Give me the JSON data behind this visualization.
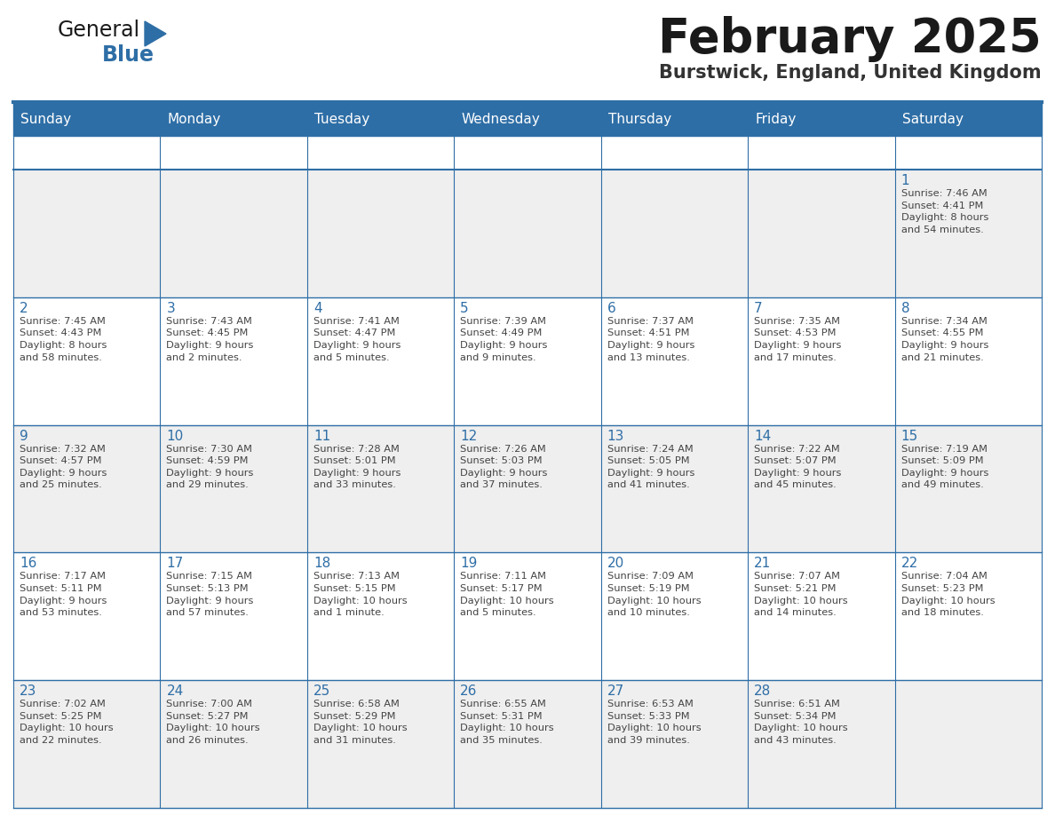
{
  "title": "February 2025",
  "subtitle": "Burstwick, England, United Kingdom",
  "header_bg_color": "#2E6EA6",
  "header_text_color": "#FFFFFF",
  "cell_bg_color_even": "#EFEFEF",
  "cell_bg_color_odd": "#FFFFFF",
  "grid_line_color": "#2E6EA6",
  "day_number_color": "#2E6EA6",
  "text_color": "#444444",
  "days_of_week": [
    "Sunday",
    "Monday",
    "Tuesday",
    "Wednesday",
    "Thursday",
    "Friday",
    "Saturday"
  ],
  "weeks": [
    [
      {
        "day": "",
        "info": ""
      },
      {
        "day": "",
        "info": ""
      },
      {
        "day": "",
        "info": ""
      },
      {
        "day": "",
        "info": ""
      },
      {
        "day": "",
        "info": ""
      },
      {
        "day": "",
        "info": ""
      },
      {
        "day": "1",
        "info": "Sunrise: 7:46 AM\nSunset: 4:41 PM\nDaylight: 8 hours\nand 54 minutes."
      }
    ],
    [
      {
        "day": "2",
        "info": "Sunrise: 7:45 AM\nSunset: 4:43 PM\nDaylight: 8 hours\nand 58 minutes."
      },
      {
        "day": "3",
        "info": "Sunrise: 7:43 AM\nSunset: 4:45 PM\nDaylight: 9 hours\nand 2 minutes."
      },
      {
        "day": "4",
        "info": "Sunrise: 7:41 AM\nSunset: 4:47 PM\nDaylight: 9 hours\nand 5 minutes."
      },
      {
        "day": "5",
        "info": "Sunrise: 7:39 AM\nSunset: 4:49 PM\nDaylight: 9 hours\nand 9 minutes."
      },
      {
        "day": "6",
        "info": "Sunrise: 7:37 AM\nSunset: 4:51 PM\nDaylight: 9 hours\nand 13 minutes."
      },
      {
        "day": "7",
        "info": "Sunrise: 7:35 AM\nSunset: 4:53 PM\nDaylight: 9 hours\nand 17 minutes."
      },
      {
        "day": "8",
        "info": "Sunrise: 7:34 AM\nSunset: 4:55 PM\nDaylight: 9 hours\nand 21 minutes."
      }
    ],
    [
      {
        "day": "9",
        "info": "Sunrise: 7:32 AM\nSunset: 4:57 PM\nDaylight: 9 hours\nand 25 minutes."
      },
      {
        "day": "10",
        "info": "Sunrise: 7:30 AM\nSunset: 4:59 PM\nDaylight: 9 hours\nand 29 minutes."
      },
      {
        "day": "11",
        "info": "Sunrise: 7:28 AM\nSunset: 5:01 PM\nDaylight: 9 hours\nand 33 minutes."
      },
      {
        "day": "12",
        "info": "Sunrise: 7:26 AM\nSunset: 5:03 PM\nDaylight: 9 hours\nand 37 minutes."
      },
      {
        "day": "13",
        "info": "Sunrise: 7:24 AM\nSunset: 5:05 PM\nDaylight: 9 hours\nand 41 minutes."
      },
      {
        "day": "14",
        "info": "Sunrise: 7:22 AM\nSunset: 5:07 PM\nDaylight: 9 hours\nand 45 minutes."
      },
      {
        "day": "15",
        "info": "Sunrise: 7:19 AM\nSunset: 5:09 PM\nDaylight: 9 hours\nand 49 minutes."
      }
    ],
    [
      {
        "day": "16",
        "info": "Sunrise: 7:17 AM\nSunset: 5:11 PM\nDaylight: 9 hours\nand 53 minutes."
      },
      {
        "day": "17",
        "info": "Sunrise: 7:15 AM\nSunset: 5:13 PM\nDaylight: 9 hours\nand 57 minutes."
      },
      {
        "day": "18",
        "info": "Sunrise: 7:13 AM\nSunset: 5:15 PM\nDaylight: 10 hours\nand 1 minute."
      },
      {
        "day": "19",
        "info": "Sunrise: 7:11 AM\nSunset: 5:17 PM\nDaylight: 10 hours\nand 5 minutes."
      },
      {
        "day": "20",
        "info": "Sunrise: 7:09 AM\nSunset: 5:19 PM\nDaylight: 10 hours\nand 10 minutes."
      },
      {
        "day": "21",
        "info": "Sunrise: 7:07 AM\nSunset: 5:21 PM\nDaylight: 10 hours\nand 14 minutes."
      },
      {
        "day": "22",
        "info": "Sunrise: 7:04 AM\nSunset: 5:23 PM\nDaylight: 10 hours\nand 18 minutes."
      }
    ],
    [
      {
        "day": "23",
        "info": "Sunrise: 7:02 AM\nSunset: 5:25 PM\nDaylight: 10 hours\nand 22 minutes."
      },
      {
        "day": "24",
        "info": "Sunrise: 7:00 AM\nSunset: 5:27 PM\nDaylight: 10 hours\nand 26 minutes."
      },
      {
        "day": "25",
        "info": "Sunrise: 6:58 AM\nSunset: 5:29 PM\nDaylight: 10 hours\nand 31 minutes."
      },
      {
        "day": "26",
        "info": "Sunrise: 6:55 AM\nSunset: 5:31 PM\nDaylight: 10 hours\nand 35 minutes."
      },
      {
        "day": "27",
        "info": "Sunrise: 6:53 AM\nSunset: 5:33 PM\nDaylight: 10 hours\nand 39 minutes."
      },
      {
        "day": "28",
        "info": "Sunrise: 6:51 AM\nSunset: 5:34 PM\nDaylight: 10 hours\nand 43 minutes."
      },
      {
        "day": "",
        "info": ""
      }
    ]
  ],
  "logo_text_general": "General",
  "logo_text_blue": "Blue",
  "logo_triangle_color": "#2E6EA6",
  "fig_width": 11.88,
  "fig_height": 9.18,
  "dpi": 100
}
